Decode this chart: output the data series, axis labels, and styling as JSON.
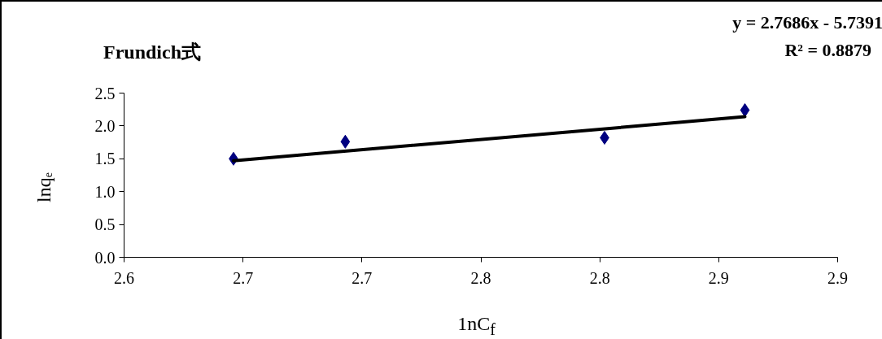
{
  "chart_data": {
    "type": "scatter",
    "title": "Frundich式",
    "xlabel": "1nC$_{f}$",
    "ylabel": "lnqₑ",
    "annotations": [
      "y = 2.7686x - 5.7391",
      "R² = 0.8879"
    ],
    "marker": "diamond",
    "grid": false,
    "xlim": [
      2.6,
      2.9
    ],
    "ylim": [
      0,
      2.5
    ],
    "xticks": [
      {
        "value": 2.6,
        "label": "2.6"
      },
      {
        "value": 2.65,
        "label": "2.7"
      },
      {
        "value": 2.7,
        "label": "2.7"
      },
      {
        "value": 2.75,
        "label": "2.8"
      },
      {
        "value": 2.8,
        "label": "2.8"
      },
      {
        "value": 2.85,
        "label": "2.9"
      },
      {
        "value": 2.9,
        "label": "2.9"
      }
    ],
    "yticks": [
      {
        "value": 0,
        "label": "0.0"
      },
      {
        "value": 0.5,
        "label": "0.5"
      },
      {
        "value": 1,
        "label": "1.0"
      },
      {
        "value": 1.5,
        "label": "1.5"
      },
      {
        "value": 2,
        "label": "2.0"
      },
      {
        "value": 2.5,
        "label": "2.5"
      }
    ],
    "series": [
      {
        "color": "#000080",
        "x": [
          2.646,
          2.693,
          2.802,
          2.861
        ],
        "values": [
          1.5,
          1.76,
          1.82,
          2.24
        ]
      },
      {
        "type": "line",
        "marker": "none",
        "color": "#000000",
        "x": [
          2.646,
          2.861
        ],
        "values": [
          1.47,
          2.14
        ]
      }
    ]
  }
}
